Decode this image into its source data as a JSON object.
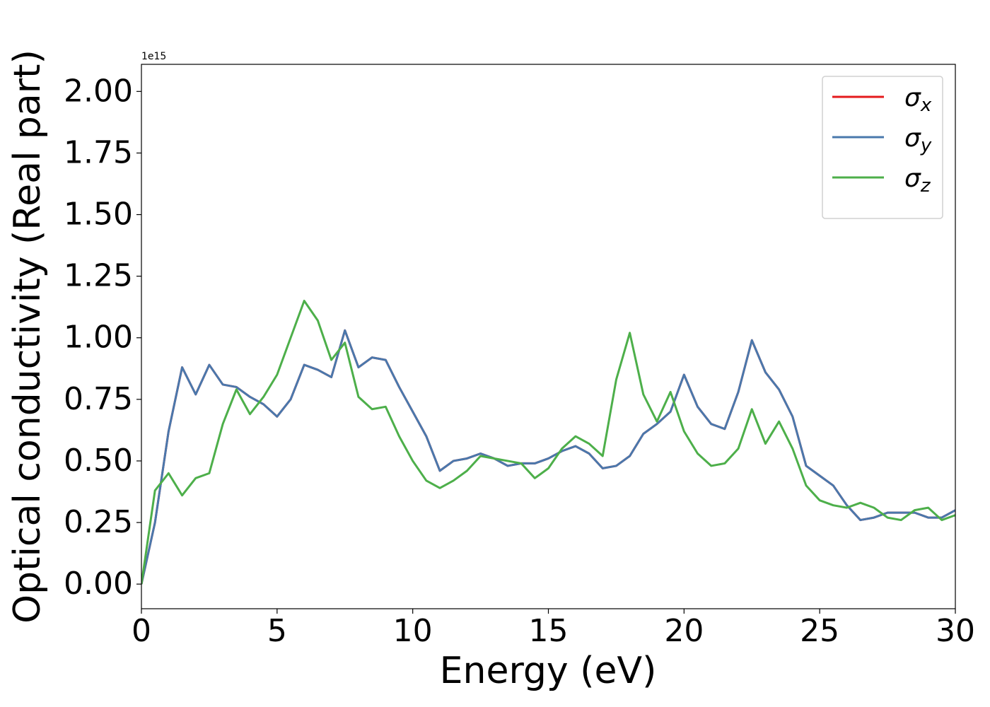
{
  "chart_data": {
    "type": "line",
    "xlabel": "Energy (eV)",
    "ylabel": "Optical conductivity (Real part)",
    "offset_label": "1e15",
    "x": [
      0,
      0.5,
      1,
      1.5,
      2,
      2.5,
      3,
      3.5,
      4,
      4.5,
      5,
      5.5,
      6,
      6.5,
      7,
      7.5,
      8,
      8.5,
      9,
      9.5,
      10,
      10.5,
      11,
      11.5,
      12,
      12.5,
      13,
      13.5,
      14,
      14.5,
      15,
      15.5,
      16,
      16.5,
      17,
      17.5,
      18,
      18.5,
      19,
      19.5,
      20,
      20.5,
      21,
      21.5,
      22,
      22.5,
      23,
      23.5,
      24,
      24.5,
      25,
      25.5,
      26,
      26.5,
      27,
      27.5,
      28,
      28.5,
      29,
      29.5,
      30
    ],
    "series": [
      {
        "name": "σx",
        "color": "#e41a1c",
        "values": [
          0,
          0.25,
          0.62,
          0.88,
          0.77,
          0.89,
          0.81,
          0.8,
          0.76,
          0.73,
          0.68,
          0.75,
          0.89,
          0.87,
          0.84,
          1.03,
          0.88,
          0.92,
          0.91,
          0.8,
          0.7,
          0.6,
          0.46,
          0.5,
          0.51,
          0.53,
          0.51,
          0.48,
          0.49,
          0.49,
          0.51,
          0.54,
          0.56,
          0.53,
          0.47,
          0.48,
          0.52,
          0.61,
          0.65,
          0.7,
          0.85,
          0.72,
          0.65,
          0.63,
          0.78,
          0.99,
          0.86,
          0.79,
          0.68,
          0.48,
          0.44,
          0.4,
          0.32,
          0.26,
          0.27,
          0.29,
          0.29,
          0.29,
          0.27,
          0.27,
          0.3
        ]
      },
      {
        "name": "σy",
        "color": "#4a78ac",
        "values": [
          0,
          0.25,
          0.62,
          0.88,
          0.77,
          0.89,
          0.81,
          0.8,
          0.76,
          0.73,
          0.68,
          0.75,
          0.89,
          0.87,
          0.84,
          1.03,
          0.88,
          0.92,
          0.91,
          0.8,
          0.7,
          0.6,
          0.46,
          0.5,
          0.51,
          0.53,
          0.51,
          0.48,
          0.49,
          0.49,
          0.51,
          0.54,
          0.56,
          0.53,
          0.47,
          0.48,
          0.52,
          0.61,
          0.65,
          0.7,
          0.85,
          0.72,
          0.65,
          0.63,
          0.78,
          0.99,
          0.86,
          0.79,
          0.68,
          0.48,
          0.44,
          0.4,
          0.32,
          0.26,
          0.27,
          0.29,
          0.29,
          0.29,
          0.27,
          0.27,
          0.3
        ]
      },
      {
        "name": "σz",
        "color": "#4daf4a",
        "values": [
          0,
          0.38,
          0.45,
          0.36,
          0.43,
          0.45,
          0.65,
          0.79,
          0.69,
          0.76,
          0.85,
          1.0,
          1.15,
          1.07,
          0.91,
          0.98,
          0.76,
          0.71,
          0.72,
          0.6,
          0.5,
          0.42,
          0.39,
          0.42,
          0.46,
          0.52,
          0.51,
          0.5,
          0.49,
          0.43,
          0.47,
          0.55,
          0.6,
          0.57,
          0.52,
          0.83,
          1.02,
          0.77,
          0.66,
          0.78,
          0.62,
          0.53,
          0.48,
          0.49,
          0.55,
          0.71,
          0.57,
          0.66,
          0.55,
          0.4,
          0.34,
          0.32,
          0.31,
          0.33,
          0.31,
          0.27,
          0.26,
          0.3,
          0.31,
          0.26,
          0.28
        ]
      }
    ],
    "xlim": [
      0,
      30
    ],
    "xticks": [
      0,
      5,
      10,
      15,
      20,
      25,
      30
    ],
    "ylim": [
      -0.1,
      2.11
    ],
    "yticks": [
      {
        "value": 0,
        "label": "0.00"
      },
      0.25,
      {
        "value": 0.5,
        "label": "0.50"
      },
      0.75,
      {
        "value": 1,
        "label": "1.00"
      },
      1.25,
      {
        "value": 1.5,
        "label": "1.50"
      },
      1.75,
      {
        "value": 2,
        "label": "2.00"
      }
    ],
    "grid": false,
    "legend": "upper right"
  }
}
